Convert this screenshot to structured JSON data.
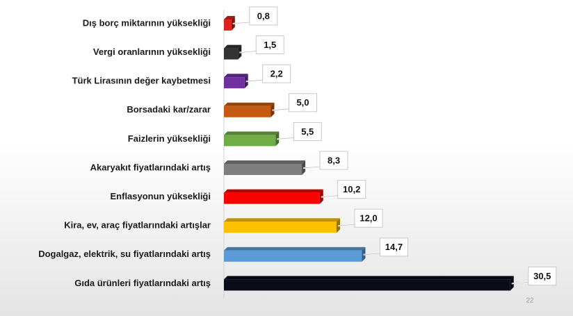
{
  "chart_data": {
    "type": "bar",
    "orientation": "horizontal",
    "categories": [
      "Dış borç miktarının yüksekliği",
      "Vergi oranlarının yüksekliği",
      "Türk Lirasının değer kaybetmesi",
      "Borsadaki kar/zarar",
      "Faizlerin yüksekliği",
      "Akaryakıt fiyatlarındaki artış",
      "Enflasyonun yüksekliği",
      "Kira, ev, araç fiyatlarındaki artışlar",
      "Dogalgaz, elektrik, su fiyatlarındaki artış",
      "Gıda ürünleri fiyatlarındaki artış"
    ],
    "values": [
      0.8,
      1.5,
      2.2,
      5.0,
      5.5,
      8.3,
      10.2,
      12.0,
      14.7,
      30.5
    ],
    "value_labels": [
      "0,8",
      "1,5",
      "2,2",
      "5,0",
      "5,5",
      "8,3",
      "10,2",
      "12,0",
      "14,7",
      "30,5"
    ],
    "colors": [
      "#e0201c",
      "#333333",
      "#7030a0",
      "#c55a11",
      "#70ad47",
      "#7f7f7f",
      "#ff0000",
      "#ffc000",
      "#5b9bd5",
      "#0b0b18"
    ]
  },
  "footer": {
    "page_number": "22"
  }
}
